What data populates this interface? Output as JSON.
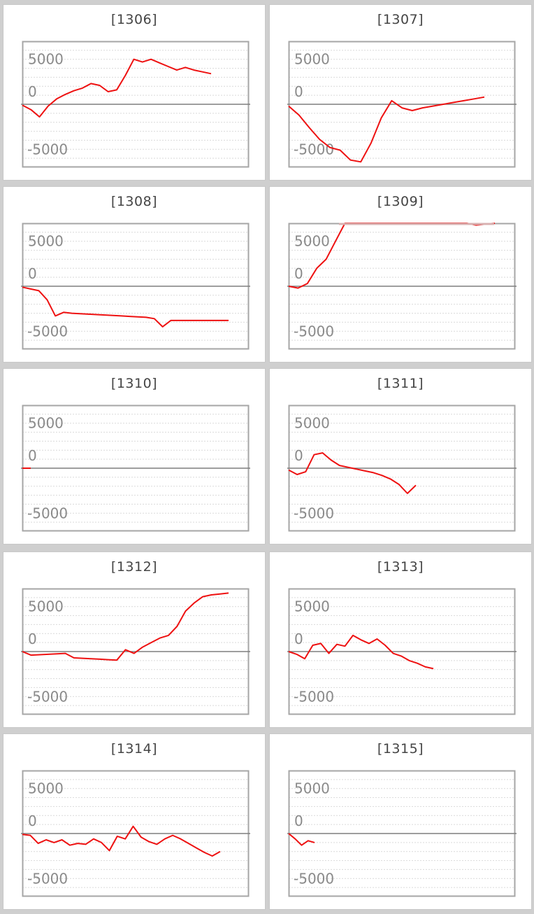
{
  "colors": {
    "line": "#ee1111",
    "zero_line": "#7f7f7f",
    "frame": "#a6a6a6",
    "grid": "#d9d9d9",
    "cap": "#d8b0b0"
  },
  "chart_data": [
    {
      "type": "line",
      "title": "[1306]",
      "ylim": [
        -7000,
        7000
      ],
      "yticks": [
        5000,
        0,
        -5000
      ],
      "grid": true,
      "legend": "none",
      "x": [
        0,
        1,
        2,
        3,
        4,
        5,
        6,
        7,
        8,
        9,
        10,
        11,
        12,
        13,
        14,
        15,
        16,
        17,
        18,
        19,
        20,
        21,
        22
      ],
      "values": [
        -100,
        -600,
        -1400,
        -200,
        600,
        1100,
        1500,
        1800,
        2300,
        2100,
        1400,
        1600,
        3200,
        5000,
        4700,
        5000,
        4600,
        4200,
        3800,
        4100,
        3800,
        3600,
        3400
      ]
    },
    {
      "type": "line",
      "title": "[1307]",
      "ylim": [
        -7000,
        7000
      ],
      "yticks": [
        5000,
        0,
        -5000
      ],
      "grid": true,
      "legend": "none",
      "x": [
        0,
        1,
        2,
        3,
        4,
        5,
        6,
        7,
        8,
        9,
        10,
        11,
        12,
        13,
        14,
        15,
        16,
        17,
        18,
        19
      ],
      "values": [
        -200,
        -1200,
        -2600,
        -3900,
        -4800,
        -5100,
        -6200,
        -6400,
        -4300,
        -1500,
        400,
        -400,
        -700,
        -400,
        -200,
        0,
        200,
        400,
        600,
        800
      ]
    },
    {
      "type": "line",
      "title": "[1308]",
      "ylim": [
        -7000,
        7000
      ],
      "yticks": [
        5000,
        0,
        -5000
      ],
      "grid": true,
      "legend": "none",
      "x": [
        0,
        1,
        2,
        3,
        4,
        5,
        6,
        7,
        8,
        9,
        10,
        11,
        12,
        13,
        14,
        15,
        16,
        17,
        18,
        19,
        20,
        21,
        22,
        23,
        24,
        25
      ],
      "values": [
        -100,
        -300,
        -500,
        -1500,
        -3300,
        -2900,
        -3000,
        -3050,
        -3100,
        -3150,
        -3200,
        -3250,
        -3300,
        -3350,
        -3400,
        -3450,
        -3600,
        -4500,
        -3800,
        -3800,
        -3800,
        -3800,
        -3800,
        -3800,
        -3800,
        -3800
      ]
    },
    {
      "type": "line",
      "title": "[1309]",
      "ylim": [
        -7000,
        7000
      ],
      "yticks": [
        5000,
        0,
        -5000
      ],
      "grid": true,
      "legend": "none",
      "x": [
        0,
        1,
        2,
        3,
        4,
        5,
        6,
        7,
        8,
        9,
        10,
        11,
        12,
        13,
        14,
        15,
        16,
        17,
        18,
        19,
        20,
        21,
        22
      ],
      "values": [
        0,
        -200,
        300,
        2000,
        3000,
        5000,
        7000,
        7000,
        7000,
        7000,
        7000,
        7000,
        7000,
        7000,
        7000,
        7000,
        7000,
        7000,
        7000,
        7000,
        6800,
        6900,
        7000
      ]
    },
    {
      "type": "line",
      "title": "[1310]",
      "ylim": [
        -7000,
        7000
      ],
      "yticks": [
        5000,
        0,
        -5000
      ],
      "grid": true,
      "legend": "none",
      "x": [
        0,
        1
      ],
      "values": [
        0,
        0
      ]
    },
    {
      "type": "line",
      "title": "[1311]",
      "ylim": [
        -7000,
        7000
      ],
      "yticks": [
        5000,
        0,
        -5000
      ],
      "grid": true,
      "legend": "none",
      "x": [
        0,
        1,
        2,
        3,
        4,
        5,
        6,
        7,
        8,
        9,
        10,
        11,
        12,
        13,
        14,
        15
      ],
      "values": [
        -200,
        -700,
        -400,
        1500,
        1700,
        900,
        300,
        100,
        -100,
        -300,
        -500,
        -800,
        -1200,
        -1800,
        -2800,
        -1900
      ]
    },
    {
      "type": "line",
      "title": "[1312]",
      "ylim": [
        -7000,
        7000
      ],
      "yticks": [
        5000,
        0,
        -5000
      ],
      "grid": true,
      "legend": "none",
      "x": [
        0,
        1,
        2,
        3,
        4,
        5,
        6,
        7,
        8,
        9,
        10,
        11,
        12,
        13,
        14,
        15,
        16,
        17,
        18,
        19,
        20,
        21,
        22,
        23,
        24
      ],
      "values": [
        0,
        -400,
        -350,
        -300,
        -250,
        -200,
        -700,
        -750,
        -800,
        -850,
        -900,
        -950,
        200,
        -200,
        500,
        1000,
        1500,
        1800,
        2800,
        4500,
        5400,
        6100,
        6300,
        6400,
        6500
      ]
    },
    {
      "type": "line",
      "title": "[1313]",
      "ylim": [
        -7000,
        7000
      ],
      "yticks": [
        5000,
        0,
        -5000
      ],
      "grid": true,
      "legend": "none",
      "x": [
        0,
        1,
        2,
        3,
        4,
        5,
        6,
        7,
        8,
        9,
        10,
        11,
        12,
        13,
        14,
        15,
        16,
        17,
        18
      ],
      "values": [
        0,
        -300,
        -800,
        700,
        900,
        -200,
        800,
        600,
        1800,
        1300,
        900,
        1400,
        700,
        -200,
        -500,
        -1000,
        -1300,
        -1700,
        -1900
      ]
    },
    {
      "type": "line",
      "title": "[1314]",
      "ylim": [
        -7000,
        7000
      ],
      "yticks": [
        5000,
        0,
        -5000
      ],
      "grid": true,
      "legend": "none",
      "x": [
        0,
        1,
        2,
        3,
        4,
        5,
        6,
        7,
        8,
        9,
        10,
        11,
        12,
        13,
        14,
        15,
        16,
        17,
        18,
        19,
        20,
        21,
        22,
        23,
        24,
        25
      ],
      "values": [
        -100,
        -200,
        -1100,
        -700,
        -1000,
        -700,
        -1300,
        -1100,
        -1200,
        -600,
        -1000,
        -1900,
        -300,
        -600,
        800,
        -400,
        -900,
        -1200,
        -600,
        -200,
        -600,
        -1100,
        -1600,
        -2100,
        -2500,
        -2000
      ]
    },
    {
      "type": "line",
      "title": "[1315]",
      "ylim": [
        -7000,
        7000
      ],
      "yticks": [
        5000,
        0,
        -5000
      ],
      "grid": true,
      "legend": "none",
      "x": [
        0,
        1,
        2,
        3,
        4
      ],
      "values": [
        0,
        -600,
        -1300,
        -800,
        -1000
      ]
    }
  ]
}
